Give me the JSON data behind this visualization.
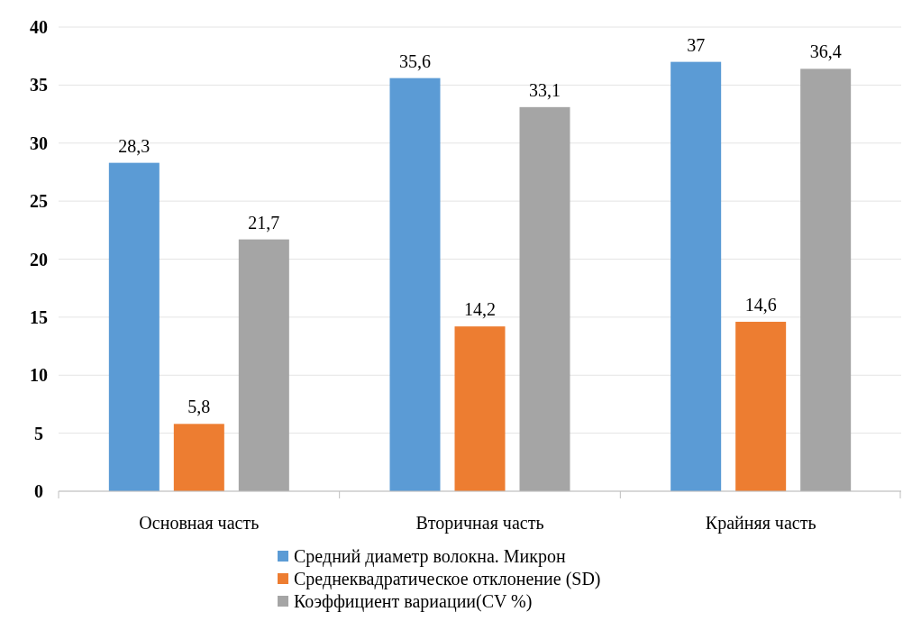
{
  "chart_data": {
    "type": "bar",
    "categories": [
      "Основная часть",
      "Вторичная часть",
      "Крайняя часть"
    ],
    "series": [
      {
        "name": "Средний диаметр волокна. Микрон",
        "color": "#5b9bd5",
        "values": [
          28.3,
          35.6,
          37
        ],
        "value_labels": [
          "28,3",
          "35,6",
          "37"
        ]
      },
      {
        "name": "Среднеквадратическое отклонение (SD)",
        "color": "#ed7d31",
        "values": [
          5.8,
          14.2,
          14.6
        ],
        "value_labels": [
          "5,8",
          "14,2",
          "14,6"
        ]
      },
      {
        "name": "Коэффициент вариации(CV %)",
        "color": "#a5a5a5",
        "values": [
          21.7,
          33.1,
          36.4
        ],
        "value_labels": [
          "21,7",
          "33,1",
          "36,4"
        ]
      }
    ],
    "ylim": [
      0,
      40
    ],
    "yticks": [
      0,
      5,
      10,
      15,
      20,
      25,
      30,
      35,
      40
    ],
    "grid": "y",
    "legend": "bottom"
  }
}
